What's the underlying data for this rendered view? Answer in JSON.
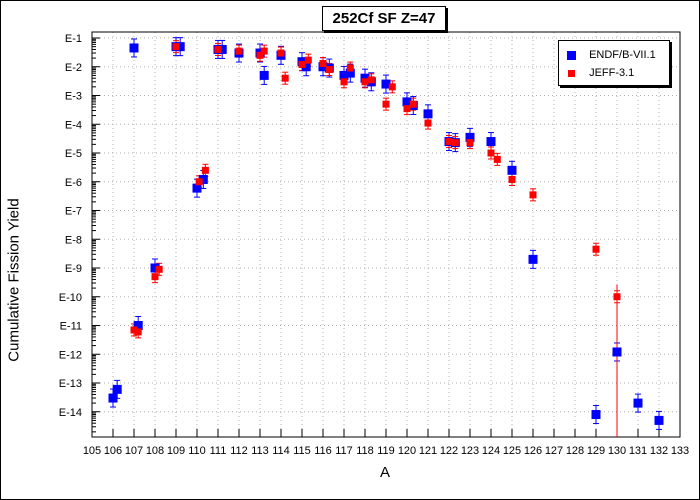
{
  "chart_data": {
    "type": "scatter",
    "title": "252Cf SF Z=47",
    "xlabel": "A",
    "ylabel": "Cumulative Fission Yield",
    "xlim": [
      105,
      133
    ],
    "ylim_exponent": [
      -15,
      -1
    ],
    "y_scale": "log",
    "x_ticks": [
      105,
      106,
      107,
      108,
      109,
      110,
      111,
      112,
      113,
      114,
      115,
      116,
      117,
      118,
      119,
      120,
      121,
      122,
      123,
      124,
      125,
      126,
      127,
      128,
      129,
      130,
      131,
      132,
      133
    ],
    "y_tick_labels": [
      "E-1",
      "E-2",
      "E-3",
      "E-4",
      "E-5",
      "E-6",
      "E-7",
      "E-8",
      "E-9",
      "E-10",
      "E-11",
      "E-12",
      "E-13",
      "E-14"
    ],
    "legend_position": "top-right",
    "series": [
      {
        "name": "ENDF/B-VII.1",
        "color": "#0000ff",
        "marker": "square",
        "points": [
          {
            "x": 106.0,
            "y": 3e-14
          },
          {
            "x": 106.2,
            "y": 6e-14
          },
          {
            "x": 107.0,
            "y": 0.045
          },
          {
            "x": 107.2,
            "y": 1e-11
          },
          {
            "x": 108.0,
            "y": 1e-09
          },
          {
            "x": 109.0,
            "y": 0.05
          },
          {
            "x": 109.2,
            "y": 0.05
          },
          {
            "x": 110.0,
            "y": 6e-07
          },
          {
            "x": 110.3,
            "y": 1.2e-06
          },
          {
            "x": 111.0,
            "y": 0.04
          },
          {
            "x": 111.2,
            "y": 0.04
          },
          {
            "x": 112.0,
            "y": 0.03
          },
          {
            "x": 113.0,
            "y": 0.03
          },
          {
            "x": 113.2,
            "y": 0.005
          },
          {
            "x": 114.0,
            "y": 0.025
          },
          {
            "x": 115.0,
            "y": 0.015
          },
          {
            "x": 115.2,
            "y": 0.01
          },
          {
            "x": 116.0,
            "y": 0.01
          },
          {
            "x": 116.3,
            "y": 0.009
          },
          {
            "x": 117.0,
            "y": 0.005
          },
          {
            "x": 117.3,
            "y": 0.006
          },
          {
            "x": 118.0,
            "y": 0.004
          },
          {
            "x": 118.3,
            "y": 0.003
          },
          {
            "x": 119.0,
            "y": 0.0025
          },
          {
            "x": 120.0,
            "y": 0.0006
          },
          {
            "x": 120.3,
            "y": 0.00045
          },
          {
            "x": 121.0,
            "y": 0.00023
          },
          {
            "x": 122.0,
            "y": 2.5e-05
          },
          {
            "x": 122.3,
            "y": 2.3e-05
          },
          {
            "x": 123.0,
            "y": 3.5e-05
          },
          {
            "x": 124.0,
            "y": 2.5e-05
          },
          {
            "x": 125.0,
            "y": 2.5e-06
          },
          {
            "x": 126.0,
            "y": 2e-09
          },
          {
            "x": 129.0,
            "y": 8e-15
          },
          {
            "x": 130.0,
            "y": 1.2e-12
          },
          {
            "x": 131.0,
            "y": 2e-14
          },
          {
            "x": 132.0,
            "y": 5e-15
          }
        ]
      },
      {
        "name": "JEFF-3.1",
        "color": "#ff0000",
        "marker": "square",
        "points": [
          {
            "x": 107.0,
            "y": 7e-12
          },
          {
            "x": 107.2,
            "y": 6e-12
          },
          {
            "x": 108.0,
            "y": 5e-10
          },
          {
            "x": 108.2,
            "y": 9e-10
          },
          {
            "x": 109.0,
            "y": 0.05
          },
          {
            "x": 110.1,
            "y": 1e-06
          },
          {
            "x": 110.4,
            "y": 2.5e-06
          },
          {
            "x": 111.0,
            "y": 0.04
          },
          {
            "x": 112.0,
            "y": 0.035
          },
          {
            "x": 113.0,
            "y": 0.025
          },
          {
            "x": 113.2,
            "y": 0.035
          },
          {
            "x": 114.0,
            "y": 0.03
          },
          {
            "x": 114.2,
            "y": 0.004
          },
          {
            "x": 115.0,
            "y": 0.012
          },
          {
            "x": 115.3,
            "y": 0.017
          },
          {
            "x": 116.0,
            "y": 0.013
          },
          {
            "x": 116.3,
            "y": 0.008
          },
          {
            "x": 117.0,
            "y": 0.003
          },
          {
            "x": 117.3,
            "y": 0.009
          },
          {
            "x": 118.0,
            "y": 0.003
          },
          {
            "x": 118.3,
            "y": 0.0035
          },
          {
            "x": 119.0,
            "y": 0.0005
          },
          {
            "x": 119.3,
            "y": 0.002
          },
          {
            "x": 120.0,
            "y": 0.00035
          },
          {
            "x": 120.3,
            "y": 0.0005
          },
          {
            "x": 121.0,
            "y": 0.00011
          },
          {
            "x": 122.0,
            "y": 2.5e-05
          },
          {
            "x": 122.3,
            "y": 2.3e-05
          },
          {
            "x": 123.0,
            "y": 2.3e-05
          },
          {
            "x": 124.0,
            "y": 1e-05
          },
          {
            "x": 124.3,
            "y": 6e-06
          },
          {
            "x": 125.0,
            "y": 1.2e-06
          },
          {
            "x": 126.0,
            "y": 3.5e-07
          },
          {
            "x": 129.0,
            "y": 4.5e-09
          },
          {
            "x": 130.0,
            "y": 1e-10
          }
        ]
      }
    ]
  }
}
